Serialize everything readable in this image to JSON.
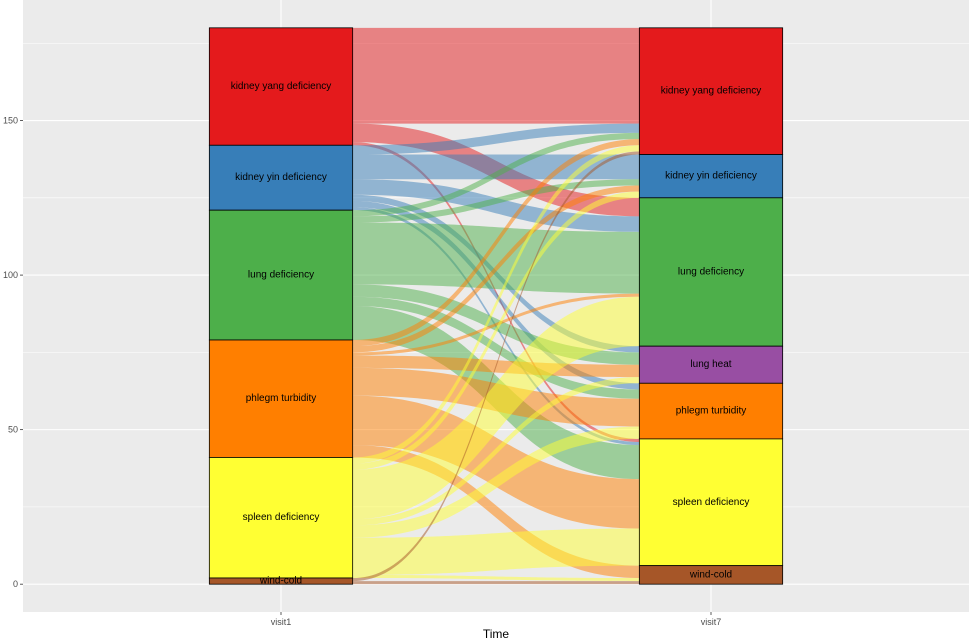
{
  "chart_data": {
    "type": "alluvial",
    "xlabel": "Time",
    "ylim": [
      -9,
      189
    ],
    "yticks": [
      0,
      50,
      100,
      150
    ],
    "grid": true,
    "axes": [
      {
        "label": "visit1",
        "strata": [
          {
            "name": "kidney yang deficiency",
            "value": 38,
            "color": "#E41A1C"
          },
          {
            "name": "kidney yin deficiency",
            "value": 21,
            "color": "#377EB8"
          },
          {
            "name": "lung deficiency",
            "value": 42,
            "color": "#4DAF4A"
          },
          {
            "name": "phlegm turbidity",
            "value": 38,
            "color": "#FF7F00"
          },
          {
            "name": "spleen deficiency",
            "value": 39,
            "color": "#FFFF33"
          },
          {
            "name": "wind-cold",
            "value": 2,
            "color": "#A65628"
          }
        ]
      },
      {
        "label": "visit7",
        "strata": [
          {
            "name": "kidney yang deficiency",
            "value": 41,
            "color": "#E41A1C"
          },
          {
            "name": "kidney yin deficiency",
            "value": 14,
            "color": "#377EB8"
          },
          {
            "name": "lung deficiency",
            "value": 48,
            "color": "#4DAF4A"
          },
          {
            "name": "lung heat",
            "value": 12,
            "color": "#984EA3"
          },
          {
            "name": "phlegm turbidity",
            "value": 18,
            "color": "#FF7F00"
          },
          {
            "name": "spleen deficiency",
            "value": 41,
            "color": "#FFFF33"
          },
          {
            "name": "wind-cold",
            "value": 6,
            "color": "#A65628"
          }
        ]
      }
    ],
    "flow_matrix": [
      [
        31,
        0,
        6,
        0,
        0,
        1,
        0
      ],
      [
        3,
        8,
        5,
        2,
        2,
        1,
        0
      ],
      [
        2,
        2,
        20,
        4,
        3,
        11,
        0
      ],
      [
        2,
        2,
        1,
        4,
        9,
        16,
        4
      ],
      [
        2,
        2,
        16,
        2,
        4,
        12,
        1
      ],
      [
        1,
        0,
        0,
        0,
        0,
        0,
        1
      ]
    ]
  }
}
